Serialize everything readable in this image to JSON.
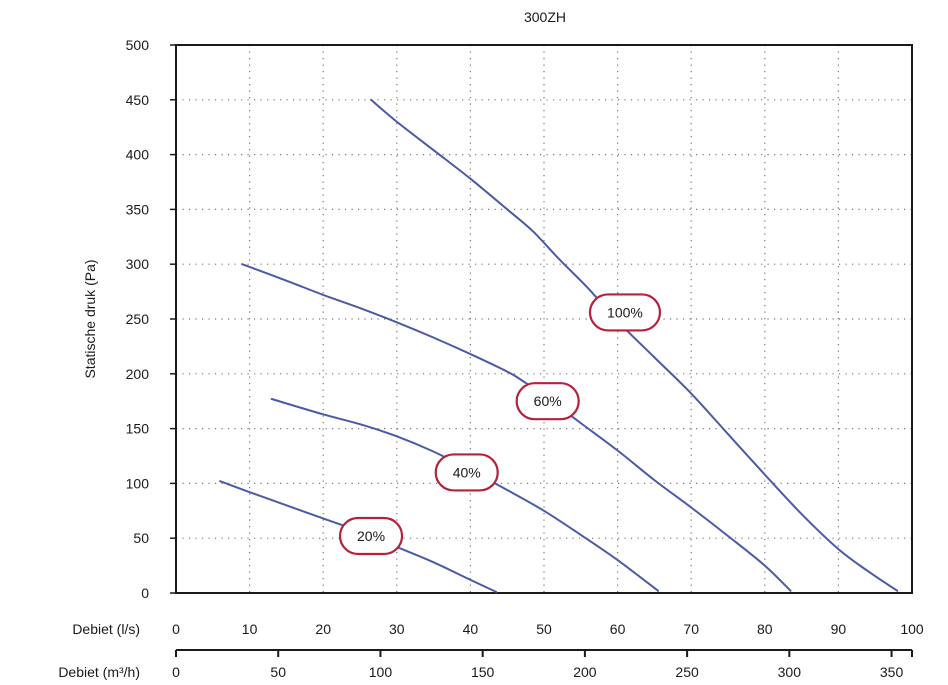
{
  "chart_data": {
    "type": "line",
    "title": "300ZH",
    "ylabel": "Statische druk (Pa)",
    "x_axes": [
      {
        "label": "Debiet (l/s)",
        "unit": "l/s",
        "range": [
          0,
          100
        ],
        "ticks": [
          0,
          10,
          20,
          30,
          40,
          50,
          60,
          70,
          80,
          90,
          100
        ]
      },
      {
        "label": "Debiet (m³/h)",
        "unit": "m³/h",
        "range": [
          0,
          360
        ],
        "ticks": [
          0,
          50,
          100,
          150,
          200,
          250,
          300,
          350
        ]
      }
    ],
    "ylim": [
      0,
      500
    ],
    "yticks": [
      0,
      50,
      100,
      150,
      200,
      250,
      300,
      350,
      400,
      450,
      500
    ],
    "grid": "dotted",
    "series": [
      {
        "name": "100%",
        "x_unit": "l/s",
        "x": [
          26.5,
          30,
          35,
          40,
          45,
          48.5,
          52,
          56,
          60,
          65,
          70,
          75,
          80,
          85,
          90,
          94,
          98
        ],
        "y": [
          450,
          430,
          404,
          378,
          350,
          330,
          305,
          278,
          248,
          215,
          182,
          145,
          108,
          72,
          40,
          20,
          2
        ]
      },
      {
        "name": "60%",
        "x_unit": "l/s",
        "x": [
          9,
          15,
          20,
          25,
          30,
          35,
          40,
          45,
          47,
          50,
          55,
          60,
          65,
          70,
          75,
          80,
          83.5
        ],
        "y": [
          300,
          285,
          272,
          260,
          247,
          233,
          218,
          202,
          194,
          180,
          155,
          130,
          103,
          78,
          52,
          25,
          2
        ]
      },
      {
        "name": "40%",
        "x_unit": "l/s",
        "x": [
          13,
          20,
          25,
          30,
          35,
          40,
          45,
          50,
          55,
          60,
          65.5
        ],
        "y": [
          177,
          163,
          154,
          143,
          129,
          112,
          94,
          75,
          53,
          30,
          2
        ]
      },
      {
        "name": "20%",
        "x_unit": "l/s",
        "x": [
          6,
          10,
          15,
          20,
          25,
          30,
          35,
          40,
          43.5
        ],
        "y": [
          102,
          92,
          80,
          68,
          56,
          42,
          28,
          12,
          1
        ]
      }
    ],
    "curve_labels": [
      {
        "text": "100%",
        "x": 61,
        "y": 256
      },
      {
        "text": "60%",
        "x": 50.5,
        "y": 175
      },
      {
        "text": "40%",
        "x": 39.5,
        "y": 110
      },
      {
        "text": "20%",
        "x": 26.5,
        "y": 52
      }
    ],
    "colors": {
      "line": "#4a5aa8",
      "label_border": "#b5213a",
      "axis": "#1a1a1a",
      "grid": "#777777"
    }
  }
}
